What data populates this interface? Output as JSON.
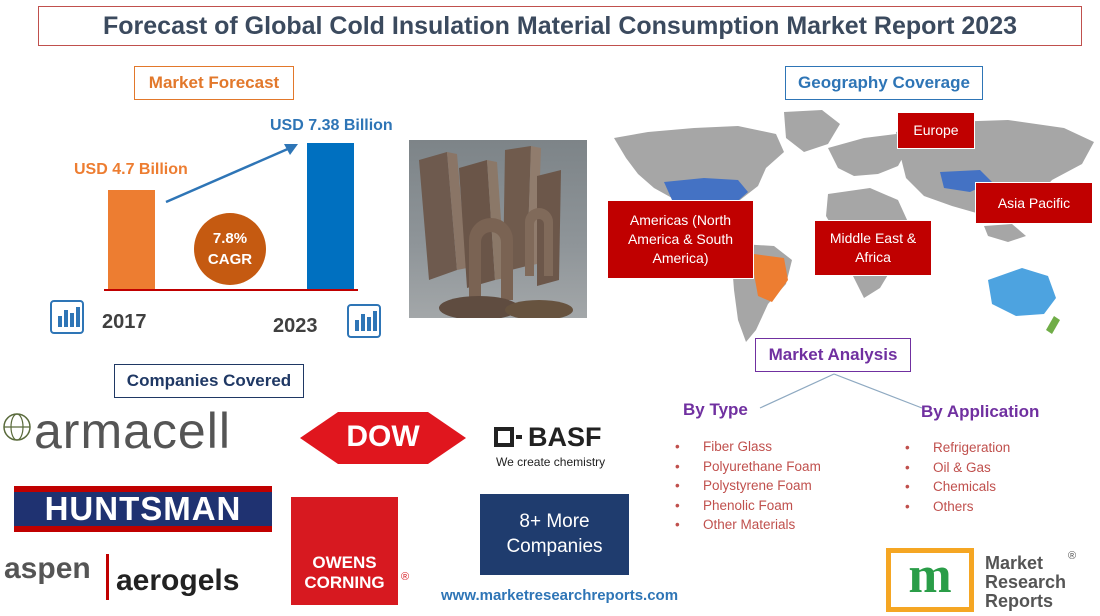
{
  "title": "Forecast of Global Cold Insulation Material Consumption Market Report 2023",
  "market_forecast": {
    "heading": "Market Forecast",
    "start_value": "USD 4.7 Billion",
    "end_value": "USD 7.38 Billion",
    "start_year": "2017",
    "end_year": "2023",
    "cagr_value": "7.8%",
    "cagr_label": "CAGR",
    "colors": {
      "start_bar": "#ed7d31",
      "end_bar": "#0070c0",
      "cagr_circle": "#c55a11"
    }
  },
  "geography": {
    "heading": "Geography Coverage",
    "regions": {
      "europe": "Europe",
      "asia_pacific": "Asia Pacific",
      "americas": "Americas (North America & South America)",
      "mea": "Middle East & Africa"
    }
  },
  "companies": {
    "heading": "Companies Covered",
    "armacell": "armacell",
    "dow": "DOW",
    "basf": "BASF",
    "basf_tagline": "We create chemistry",
    "huntsman": "HUNTSMAN",
    "owens_line1": "OWENS",
    "owens_line2": "CORNING",
    "aspen_left": "aspen",
    "aspen_right": "aerogels",
    "more_line1": "8+ More",
    "more_line2": "Companies"
  },
  "analysis": {
    "heading": "Market Analysis",
    "by_type": {
      "heading": "By Type",
      "items": [
        "Fiber Glass",
        "Polyurethane Foam",
        "Polystyrene Foam",
        "Phenolic Foam",
        "Other Materials"
      ]
    },
    "by_application": {
      "heading": "By Application",
      "items": [
        "Refrigeration",
        "Oil & Gas",
        "Chemicals",
        "Others"
      ]
    }
  },
  "website": "www.marketresearchreports.com",
  "brand": {
    "line1": "Market",
    "line2": "Research",
    "line3": "Reports",
    "mark": "m"
  }
}
